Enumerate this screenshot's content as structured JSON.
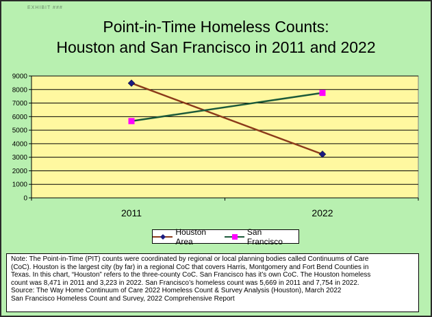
{
  "corner_text": "EXHIBIT ###",
  "chart_data": {
    "type": "line",
    "title_line1": "Point-in-Time Homeless Counts:",
    "title_line2": "Houston and San Francisco in 2011 and 2022",
    "categories": [
      "2011",
      "2022"
    ],
    "series": [
      {
        "name": "Houston Area",
        "values": [
          8471,
          3223
        ],
        "color": "#8b3a1a",
        "marker": "diamond",
        "marker_color": "#1a1a80"
      },
      {
        "name": "San Francisco",
        "values": [
          5669,
          7754
        ],
        "color": "#1c5a3a",
        "marker": "square",
        "marker_color": "#ff00ff"
      }
    ],
    "ylim": [
      0,
      9000
    ],
    "yticks": [
      0,
      1000,
      2000,
      3000,
      4000,
      5000,
      6000,
      7000,
      8000,
      9000
    ],
    "grid": true,
    "plot_background": "#fff8a0",
    "legend_position": "bottom-center"
  },
  "note": {
    "lines": [
      "Note: The Point-in-Time (PIT) counts were coordinated by regional or local planning bodies called Continuums of Care",
      "(CoC). Houston is the largest city (by far) in a regional CoC that covers Harris, Montgomery and Fort Bend Counties in",
      "Texas. In this chart, “Houston” refers to the three-county CoC. San Francisco has it’s own CoC. The Houston homeless",
      "count was 8,471 in 2011 and 3,223 in 2022. San Francisco’s homeless count was  5,669 in 2011 and 7,754 in 2022.",
      "Source: The Way Home Continuum of Care 2022 Homeless Count & Survey Analysis (Houston), March 2022",
      "San Francisco Homeless Count and Survey, 2022 Comprehensive Report"
    ]
  }
}
